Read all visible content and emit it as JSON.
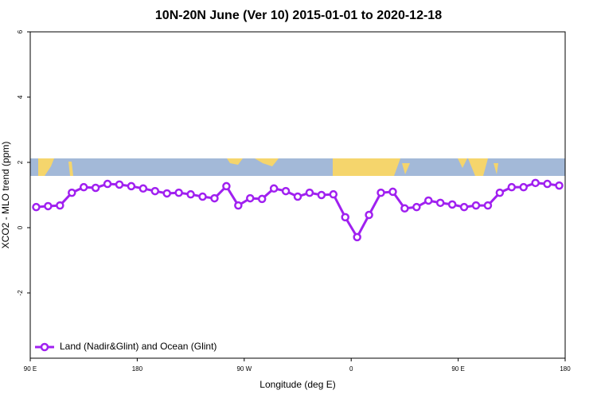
{
  "chart_data": {
    "type": "line",
    "title": "10N-20N June (Ver 10)   2015-01-01 to 2020-12-18",
    "x_label": "Longitude (deg E)",
    "y_label": "XCO2 - MLO trend (ppm)",
    "xlim": [
      90,
      540
    ],
    "xticks": [
      {
        "value": 90,
        "label": "90 E"
      },
      180,
      {
        "value": 270,
        "label": "90 W"
      },
      {
        "value": 360,
        "label": "0"
      },
      {
        "value": 450,
        "label": "90 E"
      },
      {
        "value": 540,
        "label": "180"
      }
    ],
    "ylim": [
      -4,
      6
    ],
    "yticks": [
      -2,
      0,
      2,
      4,
      6
    ],
    "legend": "bottom-left",
    "series": [
      {
        "name": "Land (Nadir&Glint) and Ocean (Glint)",
        "color": "#a020f0",
        "x": [
          95,
          105,
          115,
          125,
          135,
          145,
          155,
          165,
          175,
          185,
          195,
          205,
          215,
          225,
          235,
          245,
          255,
          265,
          275,
          285,
          295,
          305,
          315,
          325,
          335,
          345,
          355,
          365,
          375,
          385,
          395,
          405,
          415,
          425,
          435,
          445,
          455,
          465,
          475,
          485,
          495,
          505,
          515,
          525,
          535
        ],
        "values": [
          0.63,
          0.66,
          0.68,
          1.07,
          1.24,
          1.22,
          1.34,
          1.32,
          1.27,
          1.2,
          1.12,
          1.05,
          1.07,
          1.02,
          0.95,
          0.9,
          1.27,
          0.68,
          0.9,
          0.88,
          1.2,
          1.12,
          0.95,
          1.07,
          1.0,
          1.02,
          0.32,
          -0.29,
          0.39,
          1.07,
          1.1,
          0.59,
          0.63,
          0.83,
          0.76,
          0.71,
          0.63,
          0.68,
          0.68,
          1.07,
          1.24,
          1.24,
          1.37,
          1.34,
          1.29
        ]
      }
    ]
  }
}
